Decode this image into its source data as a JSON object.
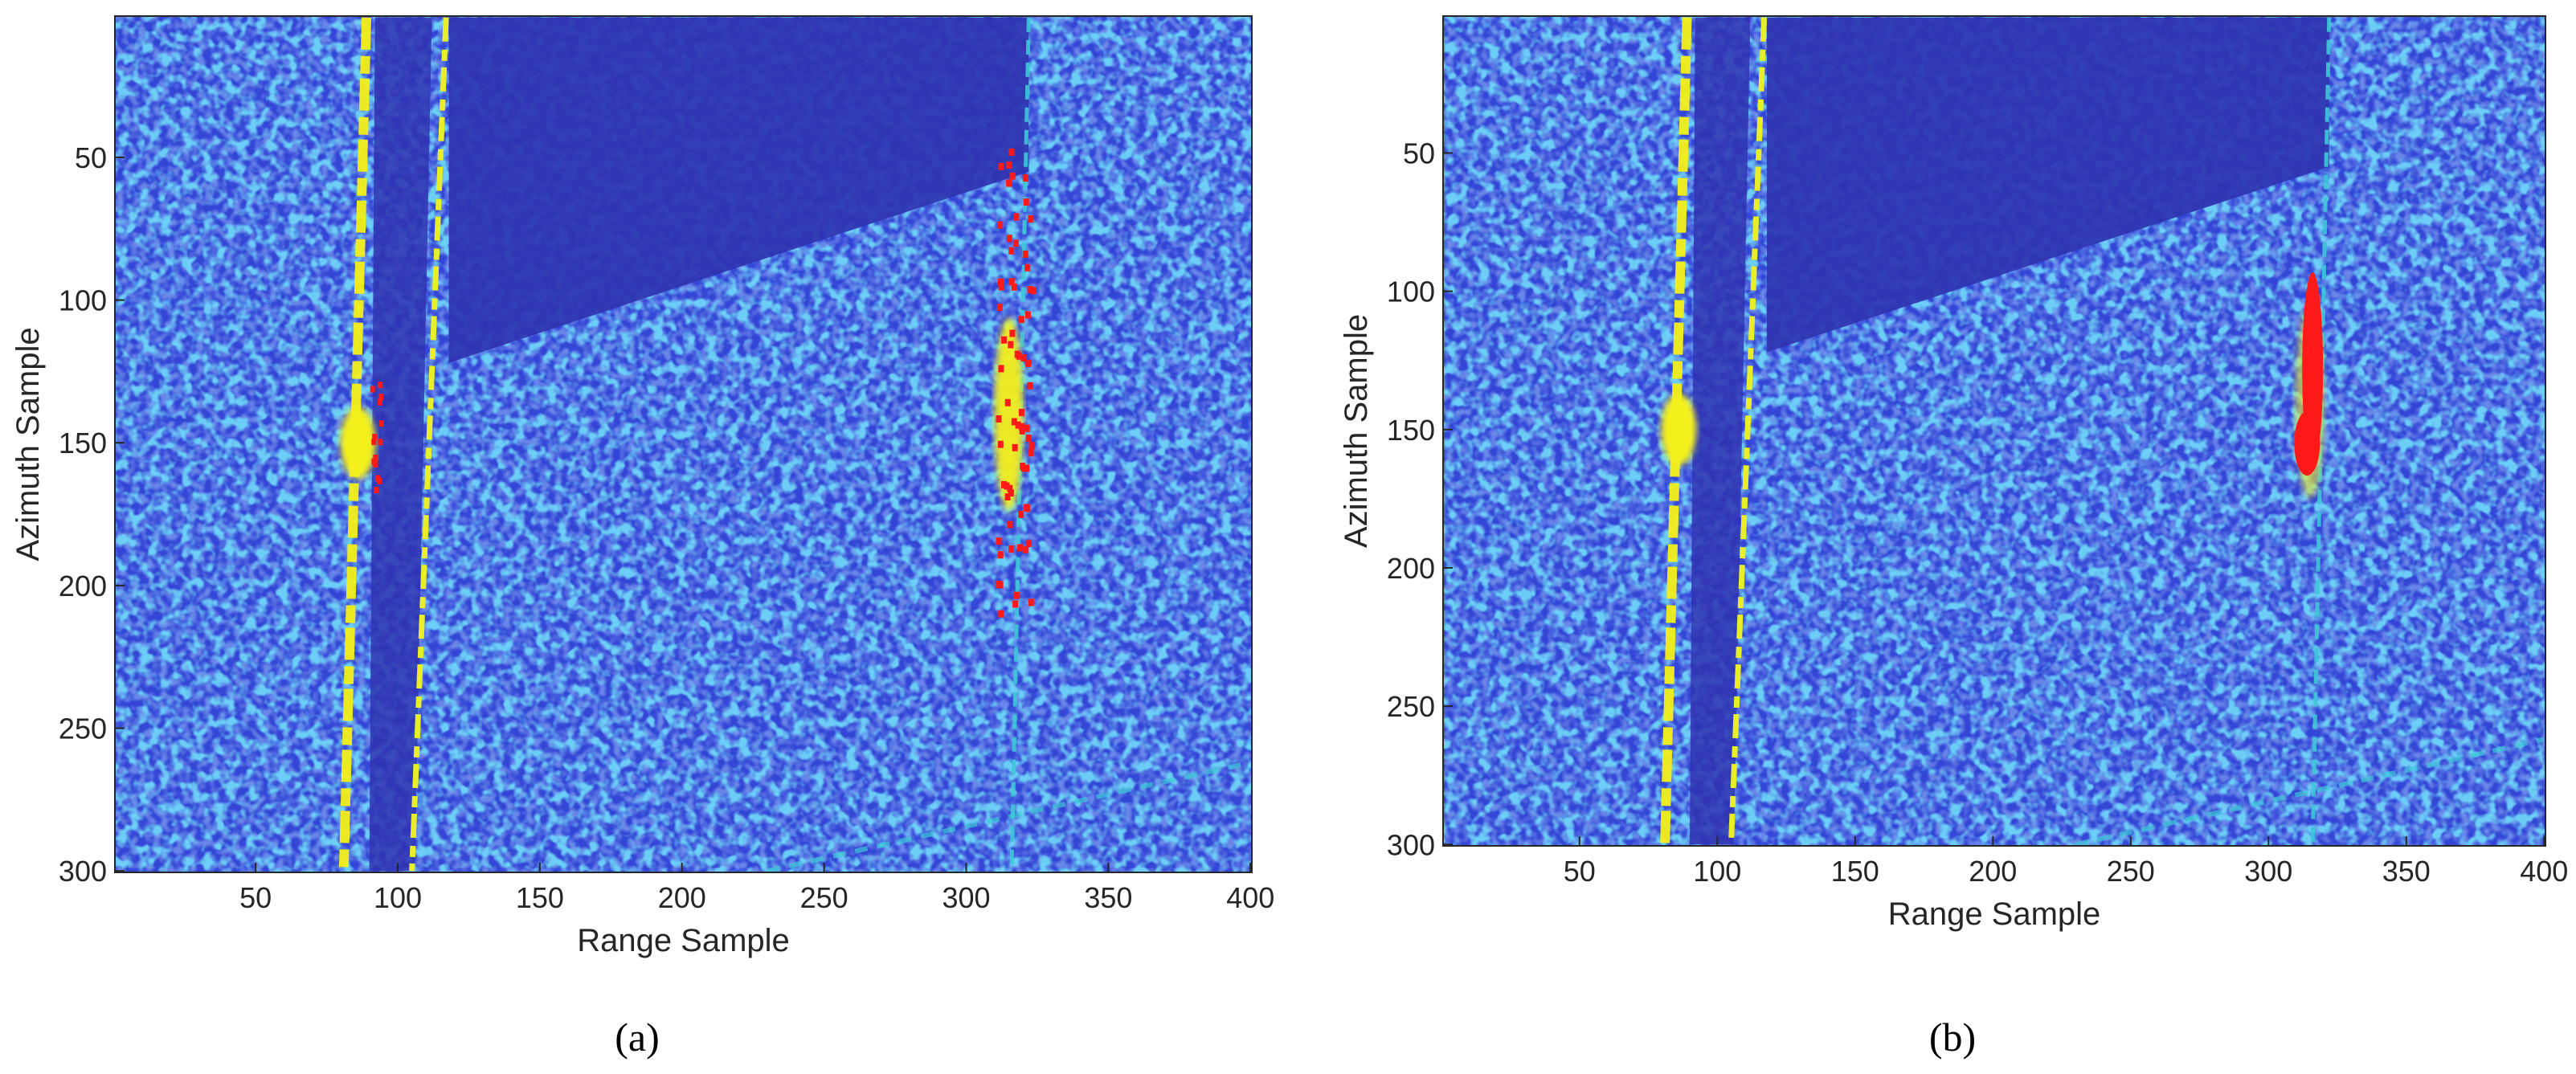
{
  "chart_data": [
    {
      "type": "image",
      "xlabel": "Range Sample",
      "ylabel": "Azimuth Sample",
      "caption": "(a)",
      "xlim": [
        0.5,
        400.5
      ],
      "ylim": [
        0.5,
        300.5
      ],
      "y_inverted": true,
      "xticks": [
        50,
        100,
        150,
        200,
        250,
        300,
        350,
        400
      ],
      "yticks": [
        50,
        100,
        150,
        200,
        250,
        300
      ]
    },
    {
      "type": "image",
      "xlabel": "Range Sample",
      "ylabel": "Azimuth Sample",
      "caption": "(b)",
      "xlim": [
        0.5,
        400.5
      ],
      "ylim": [
        0.5,
        300.5
      ],
      "y_inverted": true,
      "xticks": [
        50,
        100,
        150,
        200,
        250,
        300,
        350,
        400
      ],
      "yticks": [
        50,
        100,
        150,
        200,
        250,
        300
      ]
    }
  ]
}
